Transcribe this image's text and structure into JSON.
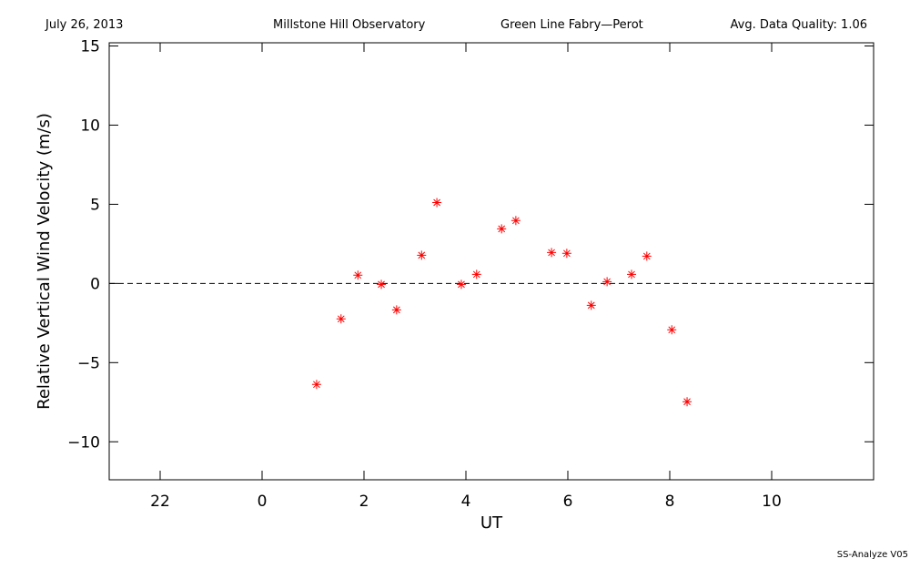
{
  "chart_data": {
    "type": "scatter",
    "header": [
      "July 26, 2013",
      "Millstone Hill Observatory",
      "Green Line Fabry—Perot",
      "Avg. Data Quality: 1.06"
    ],
    "y_label": "Relative Vertical Wind Velocity (m/s)",
    "x_label": "UT",
    "footer": "SS-Analyze V05",
    "series": [
      {
        "color": "#ff0000",
        "x": [
          1.07,
          1.55,
          1.88,
          2.34,
          2.64,
          3.13,
          3.43,
          3.91,
          4.21,
          4.7,
          4.98,
          5.68,
          5.98,
          6.46,
          6.77,
          7.25,
          7.55,
          8.04,
          8.34
        ],
        "values": [
          -6.38,
          -2.24,
          0.52,
          -0.06,
          -1.67,
          1.78,
          5.11,
          -0.06,
          0.57,
          3.45,
          3.97,
          1.95,
          1.9,
          -1.38,
          0.11,
          0.57,
          1.72,
          -2.93,
          -7.47
        ]
      }
    ],
    "xlim": [
      -3,
      12
    ],
    "xticks": [
      {
        "value": -2,
        "label": "22"
      },
      0,
      2,
      4,
      6,
      8,
      10
    ],
    "ylim": [
      -12.4,
      15.2
    ],
    "yticks": [
      {
        "value": -10,
        "label": "−10"
      },
      {
        "value": -5,
        "label": "−5"
      },
      0,
      5,
      10,
      15
    ],
    "reference_line": 0
  }
}
